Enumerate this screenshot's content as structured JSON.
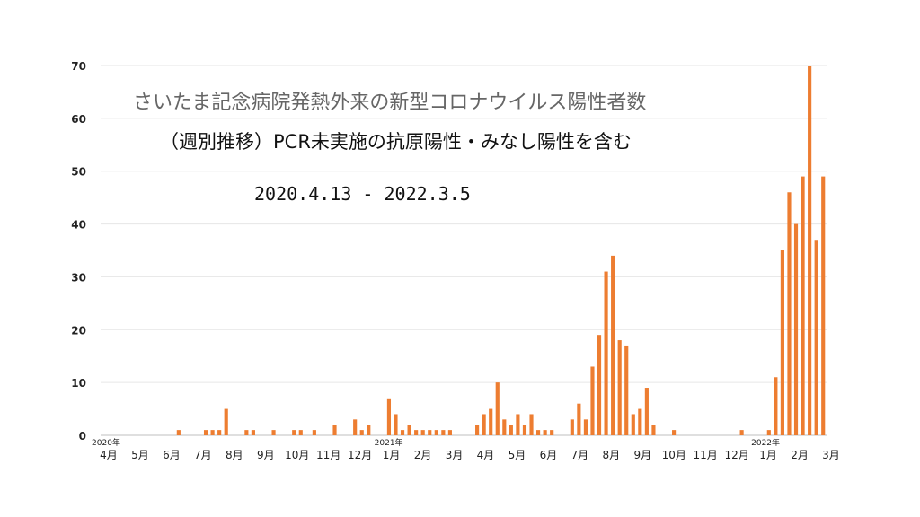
{
  "chart_data": {
    "type": "bar",
    "title": "さいたま記念病院発熱外来の新型コロナウイルス陽性者数",
    "subtitle": "（週別推移）PCR未実施の抗原陽性・みなし陽性を含む",
    "period": "2020.4.13 - 2022.3.5",
    "xlabel": "",
    "ylabel": "",
    "ylim": [
      0,
      70
    ],
    "yticks": [
      0,
      10,
      20,
      30,
      40,
      50,
      60,
      70
    ],
    "grid": true,
    "bar_color": "#ED7D31",
    "month_labels": [
      "4月",
      "5月",
      "6月",
      "7月",
      "8月",
      "9月",
      "10月",
      "11月",
      "12月",
      "1月",
      "2月",
      "3月",
      "4月",
      "5月",
      "6月",
      "7月",
      "8月",
      "9月",
      "10月",
      "11月",
      "12月",
      "1月",
      "2月",
      "3月"
    ],
    "year_labels": [
      {
        "label": "2020年",
        "month_index": 0
      },
      {
        "label": "2021年",
        "month_index": 9
      },
      {
        "label": "2022年",
        "month_index": 21
      }
    ],
    "values": [
      0,
      0,
      0,
      0,
      0,
      0,
      0,
      0,
      0,
      0,
      0,
      1,
      0,
      0,
      0,
      1,
      1,
      1,
      5,
      0,
      0,
      1,
      1,
      0,
      0,
      1,
      0,
      0,
      1,
      1,
      0,
      1,
      0,
      0,
      2,
      0,
      0,
      3,
      1,
      2,
      0,
      0,
      7,
      4,
      1,
      2,
      1,
      1,
      1,
      1,
      1,
      1,
      0,
      0,
      0,
      2,
      4,
      5,
      10,
      3,
      2,
      4,
      2,
      4,
      1,
      1,
      1,
      0,
      0,
      3,
      6,
      3,
      13,
      19,
      31,
      34,
      18,
      17,
      4,
      5,
      9,
      2,
      0,
      0,
      1,
      0,
      0,
      0,
      0,
      0,
      0,
      0,
      0,
      0,
      1,
      0,
      0,
      0,
      1,
      11,
      35,
      46,
      40,
      49,
      70,
      37,
      49
    ]
  }
}
